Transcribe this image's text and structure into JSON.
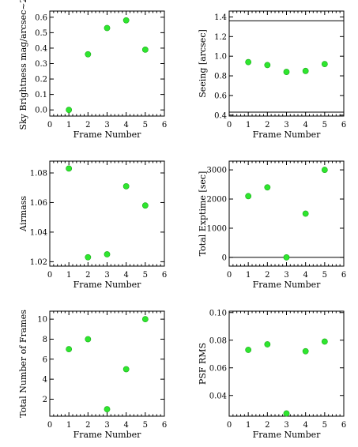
{
  "colors": {
    "point": "#2ee62e",
    "axis": "#000000"
  },
  "chart_data": [
    {
      "type": "scatter",
      "ylabel": "Sky Brightness mag/arcsec~2",
      "xlabel": "Frame Number",
      "xlim": [
        0,
        6
      ],
      "ylim": [
        -0.04,
        0.64
      ],
      "x_ticks": [
        0,
        1,
        2,
        3,
        4,
        5,
        6
      ],
      "y_ticks": [
        0.0,
        0.1,
        0.2,
        0.3,
        0.4,
        0.5,
        0.6
      ],
      "y_tick_labels": [
        "0.0",
        "0.1",
        "0.2",
        "0.3",
        "0.4",
        "0.5",
        "0.6"
      ],
      "x": [
        1,
        2,
        3,
        4,
        5
      ],
      "y": [
        0.0,
        0.36,
        0.53,
        0.58,
        0.39
      ],
      "reference_lines": []
    },
    {
      "type": "scatter",
      "ylabel": "Seeing [arcsec]",
      "xlabel": "Frame Number",
      "xlim": [
        0,
        6
      ],
      "ylim": [
        0.39,
        1.46
      ],
      "x_ticks": [
        0,
        1,
        2,
        3,
        4,
        5,
        6
      ],
      "y_ticks": [
        0.4,
        0.6,
        0.8,
        1.0,
        1.2,
        1.4
      ],
      "y_tick_labels": [
        "0.4",
        "0.6",
        "0.8",
        "1.0",
        "1.2",
        "1.4"
      ],
      "x": [
        1,
        2,
        3,
        4,
        5
      ],
      "y": [
        0.94,
        0.91,
        0.84,
        0.85,
        0.92
      ],
      "reference_lines": [
        1.36,
        0.43
      ]
    },
    {
      "type": "scatter",
      "ylabel": "Airmass",
      "xlabel": "Frame Number",
      "xlim": [
        0,
        6
      ],
      "ylim": [
        1.017,
        1.088
      ],
      "x_ticks": [
        0,
        1,
        2,
        3,
        4,
        5,
        6
      ],
      "y_ticks": [
        1.02,
        1.04,
        1.06,
        1.08
      ],
      "y_tick_labels": [
        "1.02",
        "1.04",
        "1.06",
        "1.08"
      ],
      "x": [
        1,
        2,
        3,
        4,
        5
      ],
      "y": [
        1.083,
        1.023,
        1.025,
        1.071,
        1.058
      ],
      "reference_lines": []
    },
    {
      "type": "scatter",
      "ylabel": "Total Exptime [sec]",
      "xlabel": "Frame Number",
      "xlim": [
        0,
        6
      ],
      "ylim": [
        -300,
        3300
      ],
      "x_ticks": [
        0,
        1,
        2,
        3,
        4,
        5,
        6
      ],
      "y_ticks": [
        0,
        1000,
        2000,
        3000
      ],
      "y_tick_labels": [
        "0",
        "1000",
        "2000",
        "3000"
      ],
      "x": [
        1,
        2,
        3,
        4,
        5
      ],
      "y": [
        2100,
        2400,
        0,
        1500,
        3000
      ],
      "reference_lines": [
        0
      ]
    },
    {
      "type": "scatter",
      "ylabel": "Total Number of Frames",
      "xlabel": "Frame Number",
      "xlim": [
        0,
        6
      ],
      "ylim": [
        0.3,
        10.8
      ],
      "x_ticks": [
        0,
        1,
        2,
        3,
        4,
        5,
        6
      ],
      "y_ticks": [
        2,
        4,
        6,
        8,
        10
      ],
      "y_tick_labels": [
        "2",
        "4",
        "6",
        "8",
        "10"
      ],
      "x": [
        1,
        2,
        3,
        4,
        5
      ],
      "y": [
        7,
        8,
        1,
        5,
        10
      ],
      "reference_lines": []
    },
    {
      "type": "scatter",
      "ylabel": "PSF RMS",
      "xlabel": "Frame Number",
      "xlim": [
        0,
        6
      ],
      "ylim": [
        0.025,
        0.101
      ],
      "x_ticks": [
        0,
        1,
        2,
        3,
        4,
        5,
        6
      ],
      "y_ticks": [
        0.04,
        0.06,
        0.08,
        0.1
      ],
      "y_tick_labels": [
        "0.04",
        "0.06",
        "0.08",
        "0.10"
      ],
      "x": [
        1,
        2,
        3,
        4,
        5
      ],
      "y": [
        0.073,
        0.077,
        0.027,
        0.072,
        0.079
      ],
      "reference_lines": []
    }
  ]
}
